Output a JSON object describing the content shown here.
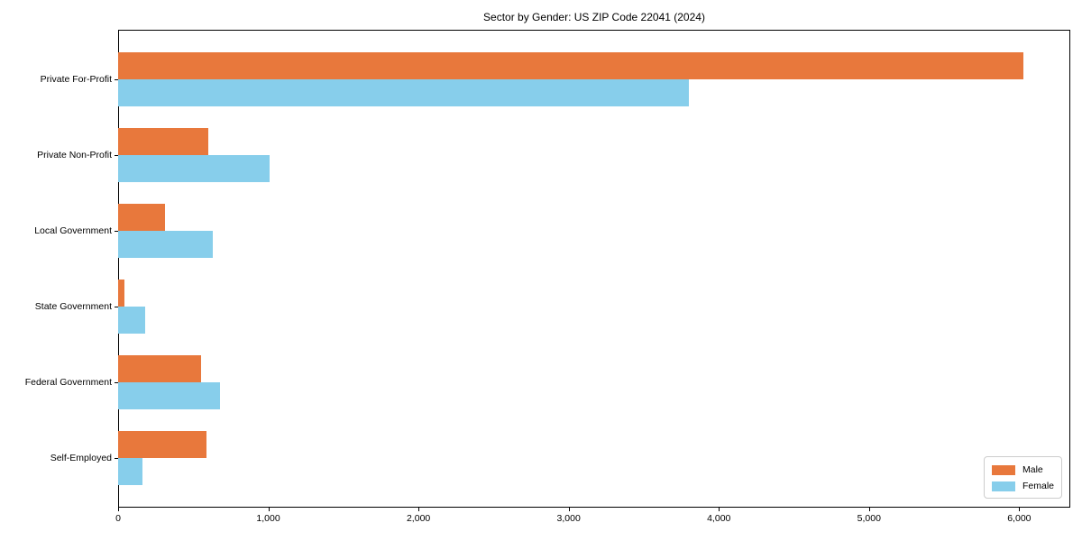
{
  "chart_data": {
    "type": "bar",
    "orientation": "horizontal",
    "title": "Sector by Gender: US ZIP Code 22041 (2024)",
    "categories": [
      "Private For-Profit",
      "Private Non-Profit",
      "Local Government",
      "State Government",
      "Federal Government",
      "Self-Employed"
    ],
    "series": [
      {
        "name": "Male",
        "color": "#e8783c",
        "values": [
          6030,
          600,
          310,
          45,
          550,
          590
        ]
      },
      {
        "name": "Female",
        "color": "#87ceeb",
        "values": [
          3800,
          1010,
          630,
          180,
          680,
          160
        ]
      }
    ],
    "xlabel": "",
    "ylabel": "",
    "xlim": [
      0,
      6340
    ],
    "xticks": [
      0,
      1000,
      2000,
      3000,
      4000,
      5000,
      6000
    ],
    "xtick_labels": [
      "0",
      "1,000",
      "2,000",
      "3,000",
      "4,000",
      "5,000",
      "6,000"
    ],
    "grid": false,
    "legend_position": "lower-right",
    "bar_colors": {
      "male": "#e8783c",
      "female": "#87ceeb"
    }
  }
}
